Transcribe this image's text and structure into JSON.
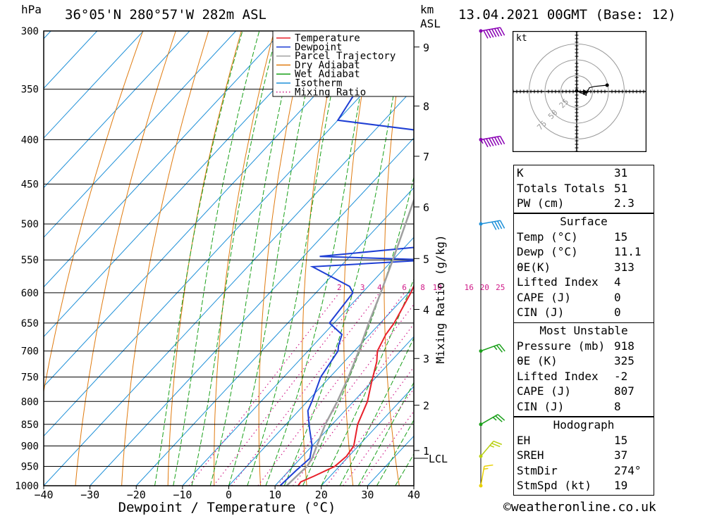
{
  "header": {
    "pressure_unit": "hPa",
    "location": "36°05'N 280°57'W 282m ASL",
    "km_label": "km",
    "asl_label": "ASL",
    "datetime": "13.04.2021 00GMT (Base: 12)"
  },
  "credit": "©weatheronline.co.uk",
  "chart_data": {
    "type": "line",
    "title": "",
    "xlabel": "Dewpoint / Temperature (°C)",
    "ylabel": "hPa",
    "y2label": "Mixing Ratio (g/kg)",
    "xlim": [
      -40,
      40
    ],
    "ylim": [
      1000,
      300
    ],
    "y_scale": "log",
    "pressure_ticks": [
      300,
      350,
      400,
      450,
      500,
      550,
      600,
      650,
      700,
      750,
      800,
      850,
      900,
      950,
      1000
    ],
    "temperature_ticks": [
      -40,
      -30,
      -20,
      -10,
      0,
      10,
      20,
      30,
      40
    ],
    "km_ticks": [
      {
        "label": "9",
        "p": 313
      },
      {
        "label": "8",
        "p": 366
      },
      {
        "label": "7",
        "p": 418
      },
      {
        "label": "6",
        "p": 478
      },
      {
        "label": "5",
        "p": 548
      },
      {
        "label": "4",
        "p": 627
      },
      {
        "label": "3",
        "p": 714
      },
      {
        "label": "2",
        "p": 808
      },
      {
        "label": "1",
        "p": 911
      }
    ],
    "lcl": {
      "label": "LCL",
      "p": 930
    },
    "mixing_ratio_labels": [
      "2",
      "3",
      "4",
      "6",
      "8",
      "10",
      "16",
      "20",
      "25"
    ],
    "legend": {
      "position": "top-right",
      "items": [
        {
          "name": "Temperature",
          "color": "#e8202a",
          "style": "solid"
        },
        {
          "name": "Dewpoint",
          "color": "#1f3fd4",
          "style": "solid"
        },
        {
          "name": "Parcel Trajectory",
          "color": "#a0a0a0",
          "style": "solid"
        },
        {
          "name": "Dry Adiabat",
          "color": "#e07b10",
          "style": "solid"
        },
        {
          "name": "Wet Adiabat",
          "color": "#1aa01a",
          "style": "solid"
        },
        {
          "name": "Isotherm",
          "color": "#1e90d8",
          "style": "solid"
        },
        {
          "name": "Mixing Ratio",
          "color": "#d01a88",
          "style": "dotted"
        }
      ]
    },
    "series": [
      {
        "name": "Temperature",
        "color": "#e8202a",
        "points": [
          [
            1000,
            15.0
          ],
          [
            990,
            14.8
          ],
          [
            975,
            16.5
          ],
          [
            950,
            19.0
          ],
          [
            925,
            19.5
          ],
          [
            900,
            19.0
          ],
          [
            850,
            15.5
          ],
          [
            800,
            13.0
          ],
          [
            760,
            10.0
          ],
          [
            720,
            7.0
          ],
          [
            700,
            5.0
          ],
          [
            670,
            3.5
          ],
          [
            650,
            3.0
          ],
          [
            600,
            0.5
          ],
          [
            570,
            -1.5
          ],
          [
            560,
            -2.0
          ],
          [
            550,
            -2.5
          ],
          [
            520,
            -5.5
          ],
          [
            500,
            -7.5
          ],
          [
            450,
            -12.0
          ],
          [
            400,
            -18.0
          ],
          [
            380,
            -18.0
          ],
          [
            350,
            -21.0
          ],
          [
            320,
            -26.0
          ],
          [
            300,
            -29.5
          ]
        ]
      },
      {
        "name": "Dewpoint",
        "color": "#1f3fd4",
        "points": [
          [
            1000,
            11.1
          ],
          [
            960,
            11.5
          ],
          [
            930,
            12.0
          ],
          [
            900,
            10.0
          ],
          [
            860,
            6.0
          ],
          [
            840,
            4.0
          ],
          [
            820,
            2.0
          ],
          [
            800,
            1.0
          ],
          [
            750,
            -2.0
          ],
          [
            700,
            -3.5
          ],
          [
            690,
            -4.5
          ],
          [
            670,
            -6.0
          ],
          [
            650,
            -11.0
          ],
          [
            600,
            -12.0
          ],
          [
            590,
            -14.0
          ],
          [
            560,
            -26.0
          ],
          [
            550,
            -2.0
          ],
          [
            545,
            -26.5
          ],
          [
            530,
            -5.0
          ],
          [
            500,
            -9.0
          ],
          [
            450,
            -10.0
          ],
          [
            430,
            -11.0
          ],
          [
            420,
            -16.0
          ],
          [
            400,
            -16.5
          ],
          [
            395,
            -22.0
          ],
          [
            380,
            -50.0
          ],
          [
            350,
            -52.0
          ],
          [
            335,
            -44.0
          ],
          [
            315,
            -24.0
          ],
          [
            300,
            -27.5
          ]
        ]
      },
      {
        "name": "Parcel Trajectory",
        "color": "#a0a0a0",
        "points": [
          [
            1000,
            12.5
          ],
          [
            950,
            13.0
          ],
          [
            930,
            12.5
          ],
          [
            900,
            11.0
          ],
          [
            850,
            8.5
          ],
          [
            800,
            6.5
          ],
          [
            750,
            4.0
          ],
          [
            700,
            1.0
          ],
          [
            650,
            -2.5
          ],
          [
            600,
            -6.0
          ],
          [
            550,
            -10.0
          ],
          [
            500,
            -14.5
          ],
          [
            450,
            -19.5
          ],
          [
            400,
            -25.0
          ],
          [
            350,
            -31.0
          ],
          [
            300,
            -38.0
          ]
        ]
      }
    ],
    "wind_barbs": [
      {
        "p": 300,
        "color": "#8a00b4",
        "dir": 260,
        "speed_kt": 70
      },
      {
        "p": 400,
        "color": "#8a00b4",
        "dir": 260,
        "speed_kt": 65
      },
      {
        "p": 500,
        "color": "#1e90d8",
        "dir": 260,
        "speed_kt": 40
      },
      {
        "p": 700,
        "color": "#1aa01a",
        "dir": 250,
        "speed_kt": 15
      },
      {
        "p": 850,
        "color": "#1aa01a",
        "dir": 240,
        "speed_kt": 15
      },
      {
        "p": 925,
        "color": "#b8d010",
        "dir": 220,
        "speed_kt": 15
      },
      {
        "p": 1000,
        "color": "#e8d000",
        "dir": 190,
        "speed_kt": 5
      }
    ],
    "hodograph": {
      "unit_label": "kt",
      "rings": [
        "25",
        "50",
        "75"
      ],
      "trace_kt": [
        [
          1,
          1
        ],
        [
          6,
          -2
        ],
        [
          9,
          -3
        ],
        [
          15,
          -6
        ],
        [
          15,
          -4
        ],
        [
          20,
          6
        ],
        [
          28,
          8
        ],
        [
          48,
          10
        ]
      ],
      "storm_motion_kt": [
        19,
        -1
      ]
    }
  },
  "indices": {
    "rows": [
      {
        "label": "K",
        "value": "31"
      },
      {
        "label": "Totals Totals",
        "value": "51"
      },
      {
        "label": "PW (cm)",
        "value": "2.3"
      }
    ]
  },
  "surface": {
    "title": "Surface",
    "rows": [
      {
        "label": "Temp (°C)",
        "value": "15"
      },
      {
        "label": "Dewp (°C)",
        "value": "11.1"
      },
      {
        "label": "θE(K)",
        "value": "313"
      },
      {
        "label": "Lifted Index",
        "value": "4"
      },
      {
        "label": "CAPE (J)",
        "value": "0"
      },
      {
        "label": "CIN (J)",
        "value": "0"
      }
    ]
  },
  "most_unstable": {
    "title": "Most Unstable",
    "rows": [
      {
        "label": "Pressure (mb)",
        "value": "918"
      },
      {
        "label": "θE (K)",
        "value": "325"
      },
      {
        "label": "Lifted Index",
        "value": "-2"
      },
      {
        "label": "CAPE (J)",
        "value": "807"
      },
      {
        "label": "CIN (J)",
        "value": "8"
      }
    ]
  },
  "hodograph_table": {
    "title": "Hodograph",
    "rows": [
      {
        "label": "EH",
        "value": "15"
      },
      {
        "label": "SREH",
        "value": "37"
      },
      {
        "label": "StmDir",
        "value": "274°"
      },
      {
        "label": "StmSpd (kt)",
        "value": "19"
      }
    ]
  }
}
